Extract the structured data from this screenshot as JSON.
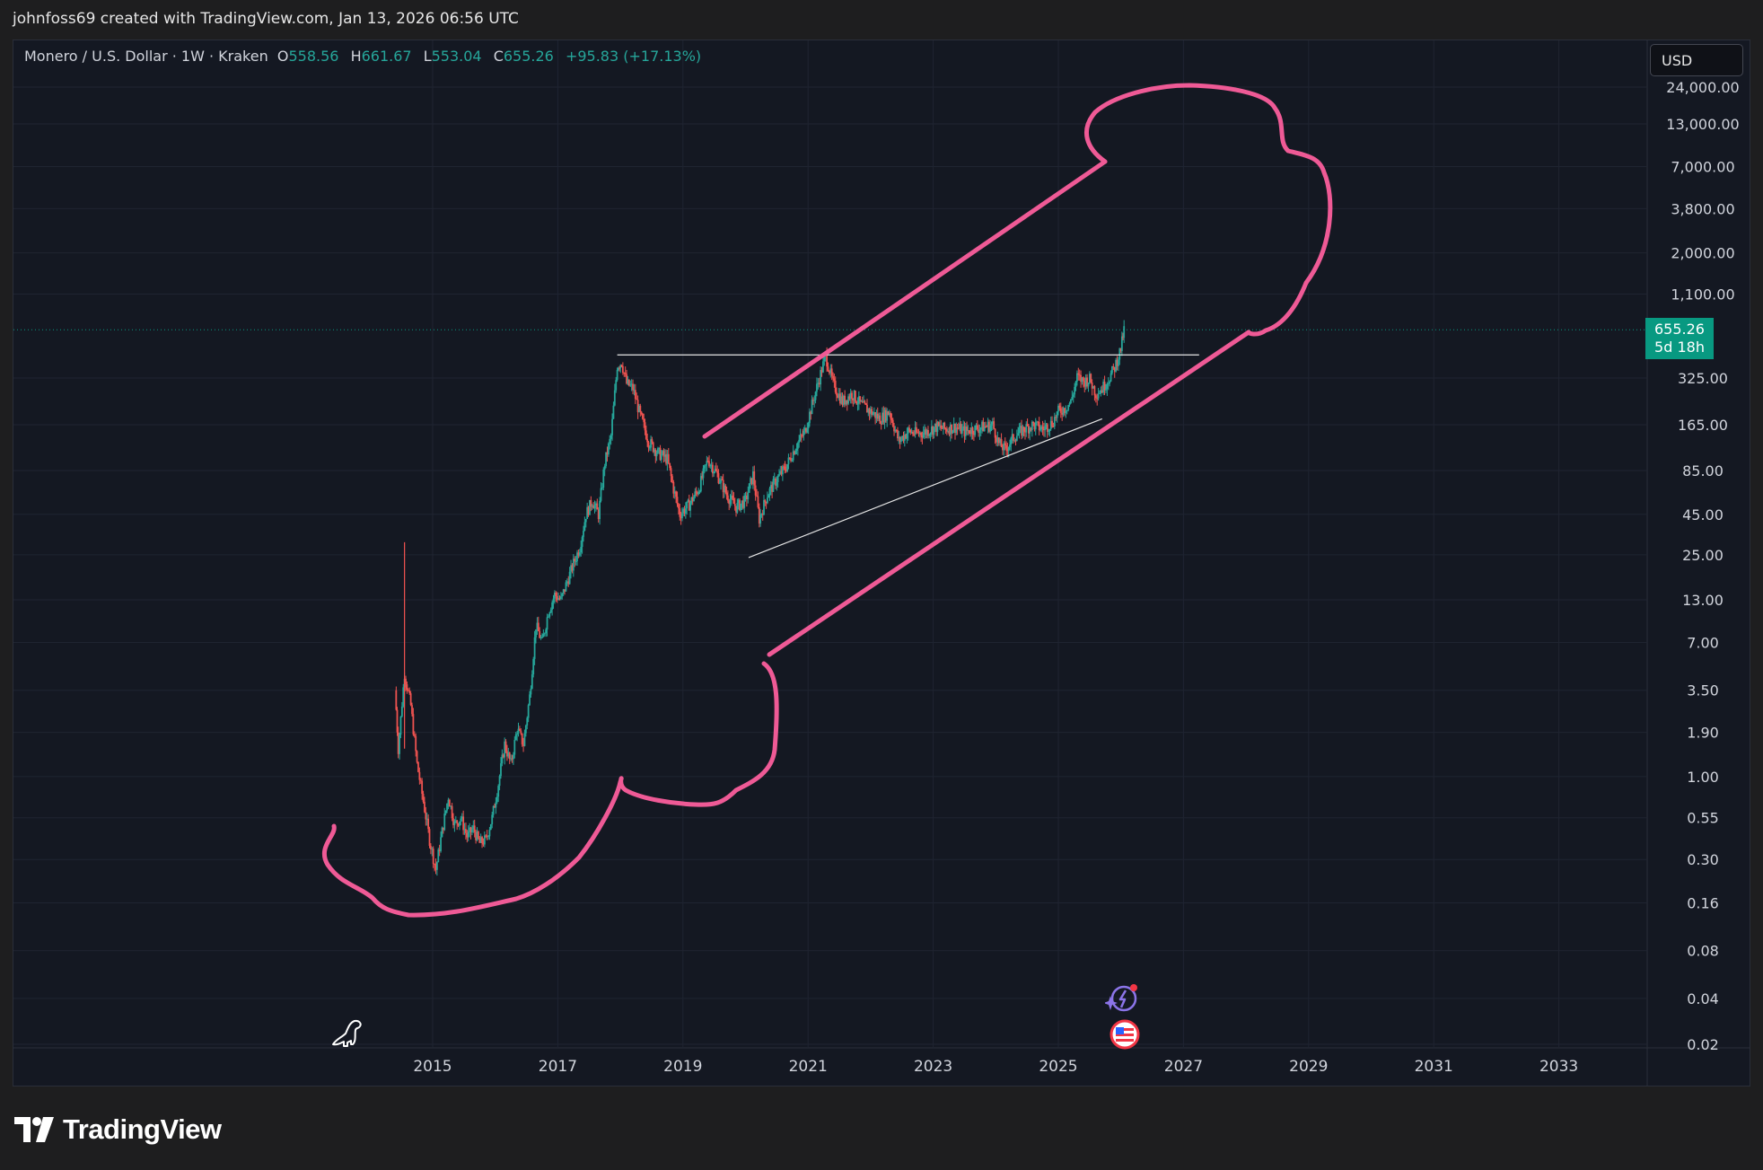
{
  "header": {
    "credit": "johnfoss69 created with TradingView.com, Jan 13, 2026 06:56 UTC"
  },
  "legend": {
    "symbol": "Monero / U.S. Dollar · 1W · Kraken",
    "open_label": "O",
    "open": "558.56",
    "high_label": "H",
    "high": "661.67",
    "low_label": "L",
    "low": "553.04",
    "close_label": "C",
    "close": "655.26",
    "change": "+95.83 (+17.13%)"
  },
  "currency_button": "USD",
  "price_tag": {
    "price": "655.26",
    "countdown": "5d 18h"
  },
  "footer": {
    "brand": "TradingView"
  },
  "colors": {
    "background": "#141822",
    "up": "#26a69a",
    "down": "#ef5350",
    "drawing": "#ef5a96",
    "trendline": "#e6e6e6",
    "price_tag": "#089981"
  },
  "icons": [
    "dinosaur-icon",
    "ai-spark-icon",
    "us-flag-event-icon",
    "tradingview-logo-icon"
  ],
  "chart_data": {
    "type": "candlestick",
    "title": "Monero / U.S. Dollar · 1W · Kraken",
    "y_scale": "log",
    "y_ticks": [
      "24,000.00",
      "13,000.00",
      "7,000.00",
      "3,800.00",
      "2,000.00",
      "1,100.00",
      "325.00",
      "165.00",
      "85.00",
      "45.00",
      "25.00",
      "13.00",
      "7.00",
      "3.50",
      "1.90",
      "1.00",
      "0.55",
      "0.30",
      "0.16",
      "0.08",
      "0.04",
      "0.02"
    ],
    "y_tick_values": [
      24000,
      13000,
      7000,
      3800,
      2000,
      1100,
      325,
      165,
      85,
      45,
      25,
      13,
      7,
      3.5,
      1.9,
      1,
      0.55,
      0.3,
      0.16,
      0.08,
      0.04,
      0.02
    ],
    "x_ticks": [
      "2015",
      "2017",
      "2019",
      "2021",
      "2023",
      "2025",
      "2027",
      "2029",
      "2031",
      "2033"
    ],
    "x_tick_values": [
      2015,
      2017,
      2019,
      2021,
      2023,
      2025,
      2027,
      2029,
      2031,
      2033
    ],
    "ylim": [
      0.02,
      30000
    ],
    "xlim": [
      2013.3,
      2034.5
    ],
    "last_price": 655.26,
    "price_path": [
      [
        2014.4,
        3.5
      ],
      [
        2014.45,
        1.5
      ],
      [
        2014.55,
        4.5
      ],
      [
        2014.65,
        2.8
      ],
      [
        2014.75,
        1.2
      ],
      [
        2014.85,
        0.7
      ],
      [
        2014.95,
        0.4
      ],
      [
        2015.05,
        0.26
      ],
      [
        2015.15,
        0.45
      ],
      [
        2015.25,
        0.75
      ],
      [
        2015.35,
        0.5
      ],
      [
        2015.45,
        0.55
      ],
      [
        2015.55,
        0.42
      ],
      [
        2015.65,
        0.47
      ],
      [
        2015.75,
        0.38
      ],
      [
        2015.85,
        0.4
      ],
      [
        2015.95,
        0.55
      ],
      [
        2016.05,
        0.9
      ],
      [
        2016.15,
        1.6
      ],
      [
        2016.25,
        1.2
      ],
      [
        2016.35,
        2.0
      ],
      [
        2016.45,
        1.6
      ],
      [
        2016.55,
        3.2
      ],
      [
        2016.65,
        9
      ],
      [
        2016.75,
        7
      ],
      [
        2016.85,
        11
      ],
      [
        2016.95,
        14
      ],
      [
        2017.05,
        13
      ],
      [
        2017.15,
        17
      ],
      [
        2017.25,
        22
      ],
      [
        2017.35,
        28
      ],
      [
        2017.45,
        45
      ],
      [
        2017.55,
        55
      ],
      [
        2017.65,
        45
      ],
      [
        2017.75,
        95
      ],
      [
        2017.85,
        140
      ],
      [
        2017.95,
        390
      ],
      [
        2018.02,
        410
      ],
      [
        2018.1,
        300
      ],
      [
        2018.2,
        280
      ],
      [
        2018.3,
        200
      ],
      [
        2018.45,
        130
      ],
      [
        2018.6,
        110
      ],
      [
        2018.75,
        100
      ],
      [
        2018.85,
        65
      ],
      [
        2018.95,
        45
      ],
      [
        2019.1,
        52
      ],
      [
        2019.25,
        65
      ],
      [
        2019.4,
        100
      ],
      [
        2019.55,
        80
      ],
      [
        2019.7,
        60
      ],
      [
        2019.85,
        50
      ],
      [
        2020.0,
        55
      ],
      [
        2020.12,
        80
      ],
      [
        2020.22,
        42
      ],
      [
        2020.35,
        60
      ],
      [
        2020.5,
        75
      ],
      [
        2020.65,
        90
      ],
      [
        2020.8,
        120
      ],
      [
        2020.95,
        150
      ],
      [
        2021.1,
        250
      ],
      [
        2021.28,
        450
      ],
      [
        2021.4,
        300
      ],
      [
        2021.55,
        230
      ],
      [
        2021.7,
        260
      ],
      [
        2021.85,
        220
      ],
      [
        2022.0,
        200
      ],
      [
        2022.15,
        180
      ],
      [
        2022.3,
        200
      ],
      [
        2022.45,
        130
      ],
      [
        2022.6,
        150
      ],
      [
        2022.75,
        145
      ],
      [
        2022.9,
        150
      ],
      [
        2023.05,
        160
      ],
      [
        2023.2,
        155
      ],
      [
        2023.35,
        160
      ],
      [
        2023.5,
        150
      ],
      [
        2023.65,
        155
      ],
      [
        2023.8,
        160
      ],
      [
        2023.95,
        165
      ],
      [
        2024.05,
        125
      ],
      [
        2024.15,
        115
      ],
      [
        2024.3,
        140
      ],
      [
        2024.45,
        155
      ],
      [
        2024.6,
        165
      ],
      [
        2024.75,
        155
      ],
      [
        2024.9,
        170
      ],
      [
        2025.0,
        200
      ],
      [
        2025.1,
        210
      ],
      [
        2025.2,
        230
      ],
      [
        2025.3,
        330
      ],
      [
        2025.4,
        310
      ],
      [
        2025.5,
        320
      ],
      [
        2025.6,
        260
      ],
      [
        2025.7,
        280
      ],
      [
        2025.8,
        320
      ],
      [
        2025.9,
        380
      ],
      [
        2026.0,
        500
      ],
      [
        2026.05,
        655.26
      ]
    ],
    "drawings": {
      "resistance_line": [
        [
          2017.95,
          455
        ],
        [
          2027.25,
          455
        ]
      ],
      "support_trendline": [
        [
          2020.05,
          24
        ],
        [
          2025.7,
          180
        ]
      ]
    }
  }
}
